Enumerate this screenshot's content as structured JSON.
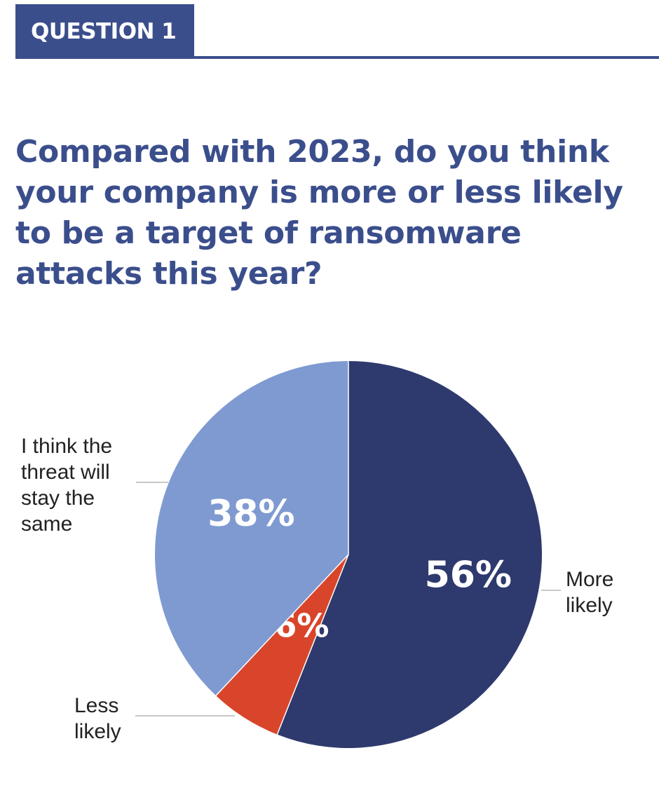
{
  "header": {
    "badge_label": "QUESTION 1",
    "question": "Compared with 2023, do you think your company is more or less likely to be a target of ransomware attacks this year?"
  },
  "chart_data": {
    "type": "pie",
    "title": "",
    "unit": "%",
    "slices": [
      {
        "label": "More likely",
        "value": 56,
        "value_label": "56%",
        "color": "#2e3a6e"
      },
      {
        "label": "Less likely",
        "value": 6,
        "value_label": "6%",
        "color": "#d9452a"
      },
      {
        "label": "I think the threat will stay the same",
        "value": 38,
        "value_label": "38%",
        "color": "#7f9ad1"
      }
    ],
    "start_angle": "12 o'clock",
    "direction": "clockwise",
    "labels": "outside with leader lines"
  },
  "colors": {
    "accent": "#3b4e8c",
    "leader_line": "#c8c8c8",
    "label_text": "#222222",
    "value_text": "#ffffff"
  }
}
